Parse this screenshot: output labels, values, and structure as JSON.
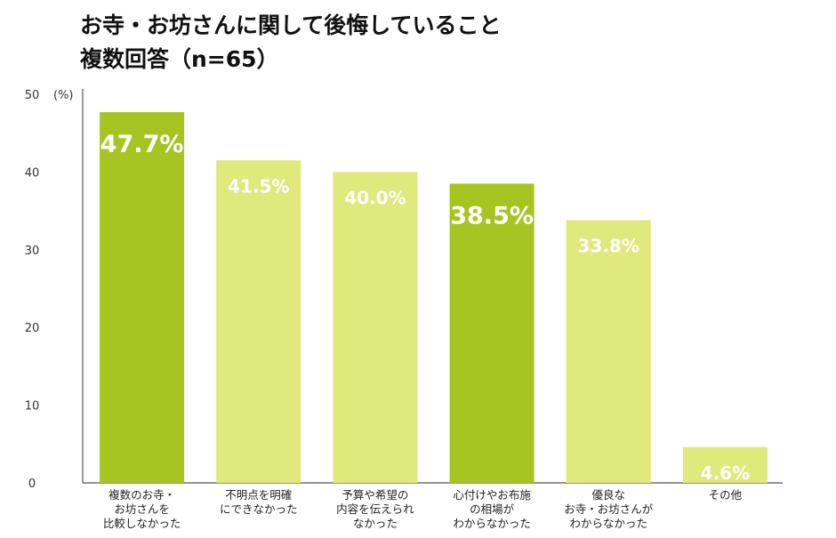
{
  "title_lines": [
    "お寺・お坊さんに関して後悔していること",
    "複数回答（n=65）"
  ],
  "chart_data": {
    "type": "bar",
    "ylim": [
      0,
      50
    ],
    "yticks": [
      0,
      10,
      20,
      30,
      40,
      50
    ],
    "yunit": "(%)",
    "categories": [
      {
        "lines": [
          "複数のお寺・",
          "お坊さんを",
          "比較しなかった"
        ]
      },
      {
        "lines": [
          "不明点を明確",
          "にできなかった"
        ]
      },
      {
        "lines": [
          "予算や希望の",
          "内容を伝えられ",
          "なかった"
        ]
      },
      {
        "lines": [
          "心付けやお布施",
          "の相場が",
          "わからなかった"
        ]
      },
      {
        "lines": [
          "優良な",
          "お寺・お坊さんが",
          "わからなかった"
        ]
      },
      {
        "lines": [
          "その他"
        ]
      }
    ],
    "values": [
      47.7,
      41.5,
      40.0,
      38.5,
      33.8,
      4.6
    ],
    "value_labels": [
      "47.7%",
      "41.5%",
      "40.0%",
      "38.5%",
      "33.8%",
      "4.6%"
    ],
    "highlight": [
      true,
      false,
      false,
      true,
      false,
      false
    ],
    "colors": {
      "highlight": "#a8c423",
      "normal": "#dfe97c",
      "axis": "#555555"
    },
    "grid": false
  }
}
